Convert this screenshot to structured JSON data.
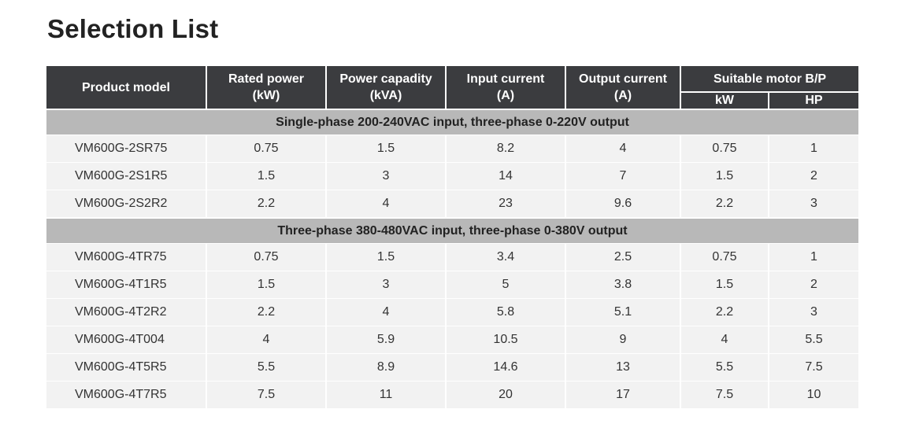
{
  "title": "Selection List",
  "headers": {
    "product_model": "Product model",
    "rated_power": [
      "Rated power",
      "(kW)"
    ],
    "power_capacity": [
      "Power capadity",
      "(kVA)"
    ],
    "input_current": [
      "Input current",
      "(A)"
    ],
    "output_current": [
      "Output current",
      "(A)"
    ],
    "suitable_motor": "Suitable motor B/P",
    "motor_kw": "kW",
    "motor_hp": "HP"
  },
  "sections": [
    {
      "label": "Single-phase 200-240VAC input, three-phase 0-220V output",
      "rows": [
        [
          "VM600G-2SR75",
          "0.75",
          "1.5",
          "8.2",
          "4",
          "0.75",
          "1"
        ],
        [
          "VM600G-2S1R5",
          "1.5",
          "3",
          "14",
          "7",
          "1.5",
          "2"
        ],
        [
          "VM600G-2S2R2",
          "2.2",
          "4",
          "23",
          "9.6",
          "2.2",
          "3"
        ]
      ]
    },
    {
      "label": "Three-phase 380-480VAC input, three-phase 0-380V output",
      "rows": [
        [
          "VM600G-4TR75",
          "0.75",
          "1.5",
          "3.4",
          "2.5",
          "0.75",
          "1"
        ],
        [
          "VM600G-4T1R5",
          "1.5",
          "3",
          "5",
          "3.8",
          "1.5",
          "2"
        ],
        [
          "VM600G-4T2R2",
          "2.2",
          "4",
          "5.8",
          "5.1",
          "2.2",
          "3"
        ],
        [
          "VM600G-4T004",
          "4",
          "5.9",
          "10.5",
          "9",
          "4",
          "5.5"
        ],
        [
          "VM600G-4T5R5",
          "5.5",
          "8.9",
          "14.6",
          "13",
          "5.5",
          "7.5"
        ],
        [
          "VM600G-4T7R5",
          "7.5",
          "11",
          "20",
          "17",
          "7.5",
          "10"
        ]
      ]
    }
  ]
}
